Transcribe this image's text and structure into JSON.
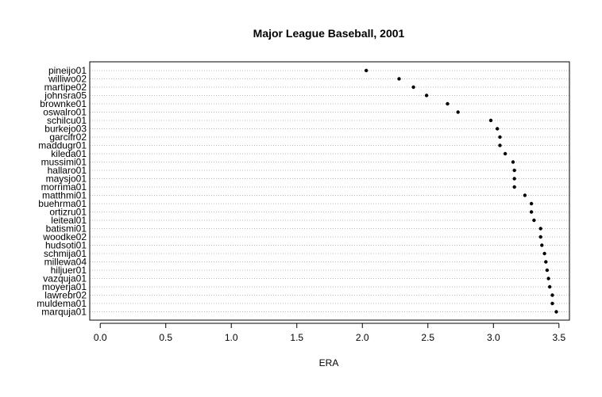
{
  "chart_data": {
    "type": "scatter",
    "title": "Major League Baseball, 2001",
    "xlabel": "ERA",
    "ylabel": "",
    "xlim": [
      -0.08,
      3.58
    ],
    "xticks": [
      0.0,
      0.5,
      1.0,
      1.5,
      2.0,
      2.5,
      3.0,
      3.5
    ],
    "xtick_labels": [
      "0.0",
      "0.5",
      "1.0",
      "1.5",
      "2.0",
      "2.5",
      "3.0",
      "3.5"
    ],
    "grid": "dotted horizontal lines at each player",
    "categories": [
      "pineijo01",
      "williwo02",
      "martipe02",
      "johnsra05",
      "brownke01",
      "oswalro01",
      "schilcu01",
      "burkejo03",
      "garcifr02",
      "maddugr01",
      "kileda01",
      "mussimi01",
      "hallaro01",
      "maysjo01",
      "morrima01",
      "matthmi01",
      "buehrma01",
      "ortizru01",
      "leiteal01",
      "batismi01",
      "woodke02",
      "hudsoti01",
      "schmija01",
      "millewa04",
      "hiljuer01",
      "vazquja01",
      "moyerja01",
      "lawrebr02",
      "muldema01",
      "marquja01"
    ],
    "values": [
      2.03,
      2.28,
      2.39,
      2.49,
      2.65,
      2.73,
      2.98,
      3.03,
      3.05,
      3.05,
      3.09,
      3.15,
      3.16,
      3.16,
      3.16,
      3.24,
      3.29,
      3.29,
      3.31,
      3.36,
      3.36,
      3.37,
      3.39,
      3.4,
      3.41,
      3.42,
      3.43,
      3.45,
      3.45,
      3.48
    ]
  }
}
